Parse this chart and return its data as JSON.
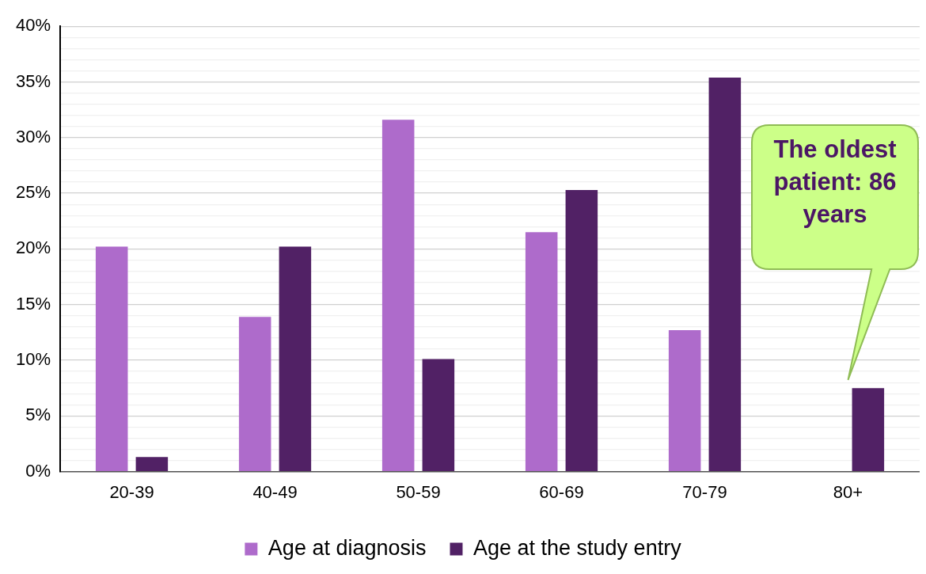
{
  "chart_data": {
    "type": "bar",
    "categories": [
      "20-39",
      "40-49",
      "50-59",
      "60-69",
      "70-79",
      "80+"
    ],
    "series": [
      {
        "name": "Age at diagnosis",
        "color": "#ae6bcb",
        "values": [
          20.2,
          13.9,
          31.6,
          21.5,
          12.7,
          null
        ]
      },
      {
        "name": "Age at the study entry",
        "color": "#512165",
        "values": [
          1.3,
          20.2,
          10.1,
          25.3,
          35.4,
          7.5
        ]
      }
    ],
    "ylim": [
      0,
      40
    ],
    "yticks": [
      {
        "value": 0,
        "label": "0%"
      },
      {
        "value": 1,
        "label": null
      },
      {
        "value": 2,
        "label": null
      },
      {
        "value": 3,
        "label": null
      },
      {
        "value": 4,
        "label": null
      },
      {
        "value": 5,
        "label": "5%"
      },
      {
        "value": 6,
        "label": null
      },
      {
        "value": 7,
        "label": null
      },
      {
        "value": 8,
        "label": null
      },
      {
        "value": 9,
        "label": null
      },
      {
        "value": 10,
        "label": "10%"
      },
      {
        "value": 11,
        "label": null
      },
      {
        "value": 12,
        "label": null
      },
      {
        "value": 13,
        "label": null
      },
      {
        "value": 14,
        "label": null
      },
      {
        "value": 15,
        "label": "15%"
      },
      {
        "value": 16,
        "label": null
      },
      {
        "value": 17,
        "label": null
      },
      {
        "value": 18,
        "label": null
      },
      {
        "value": 19,
        "label": null
      },
      {
        "value": 20,
        "label": "20%"
      },
      {
        "value": 21,
        "label": null
      },
      {
        "value": 22,
        "label": null
      },
      {
        "value": 23,
        "label": null
      },
      {
        "value": 24,
        "label": null
      },
      {
        "value": 25,
        "label": "25%"
      },
      {
        "value": 26,
        "label": null
      },
      {
        "value": 27,
        "label": null
      },
      {
        "value": 28,
        "label": null
      },
      {
        "value": 29,
        "label": null
      },
      {
        "value": 30,
        "label": "30%"
      },
      {
        "value": 31,
        "label": null
      },
      {
        "value": 32,
        "label": null
      },
      {
        "value": 33,
        "label": null
      },
      {
        "value": 34,
        "label": null
      },
      {
        "value": 35,
        "label": "35%"
      },
      {
        "value": 36,
        "label": null
      },
      {
        "value": 37,
        "label": null
      },
      {
        "value": 38,
        "label": null
      },
      {
        "value": 39,
        "label": null
      },
      {
        "value": 40,
        "label": "40%"
      }
    ],
    "grid": "y",
    "legend": "bottom",
    "annotations": [
      "The oldest patient: 86 years"
    ]
  }
}
